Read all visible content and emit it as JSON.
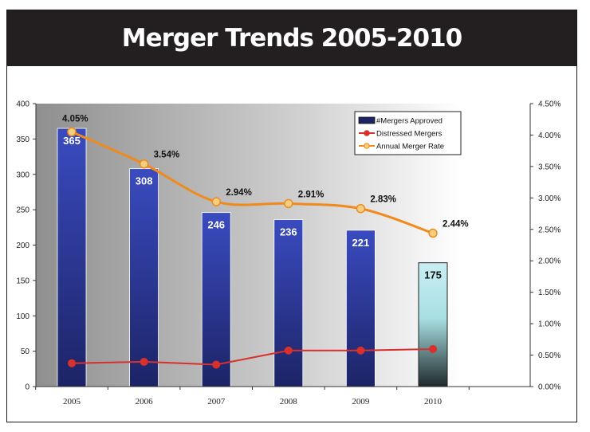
{
  "banner": {
    "title": "Merger Trends 2005-2010"
  },
  "colors": {
    "bar_dark": "#1c2466",
    "bar_light": "#3a4bc0",
    "bar_highlight_top": "#c9eef2",
    "bar_highlight_bottom": "#1e2a2a",
    "distressed": "#d9302c",
    "rate_line": "#f08a1c",
    "rate_marker": "#f3cf82"
  },
  "chart_data": {
    "type": "bar",
    "title": "Merger Trends 2005-2010",
    "categories": [
      "2005",
      "2006",
      "2007",
      "2008",
      "2009",
      "2010"
    ],
    "series": [
      {
        "name": "#Mergers Approved",
        "type": "bar",
        "axis": "left",
        "values": [
          365,
          308,
          246,
          236,
          221,
          175
        ],
        "labels": [
          "365",
          "308",
          "246",
          "236",
          "221",
          "175"
        ]
      },
      {
        "name": "Distressed Mergers",
        "type": "line",
        "axis": "left",
        "values": [
          33,
          35,
          31,
          51,
          51,
          53
        ]
      },
      {
        "name": "Annual Merger Rate",
        "type": "line",
        "axis": "right",
        "values": [
          4.05,
          3.54,
          2.94,
          2.91,
          2.83,
          2.44
        ],
        "labels": [
          "4.05%",
          "3.54%",
          "2.94%",
          "2.91%",
          "2.83%",
          "2.44%"
        ]
      }
    ],
    "left_axis": {
      "ylim": [
        0,
        400
      ],
      "ticks": [
        "0",
        "50",
        "100",
        "150",
        "200",
        "250",
        "300",
        "350",
        "400"
      ]
    },
    "right_axis": {
      "ylim": [
        0,
        4.5
      ],
      "ticks": [
        "0.00%",
        "0.50%",
        "1.00%",
        "1.50%",
        "2.00%",
        "2.50%",
        "3.00%",
        "3.50%",
        "4.00%",
        "4.50%"
      ]
    },
    "legend": {
      "position": "top-right",
      "entries": [
        "#Mergers Approved",
        "Distressed Mergers",
        "Annual Merger Rate"
      ]
    },
    "xlabel": "",
    "ylabel": ""
  }
}
